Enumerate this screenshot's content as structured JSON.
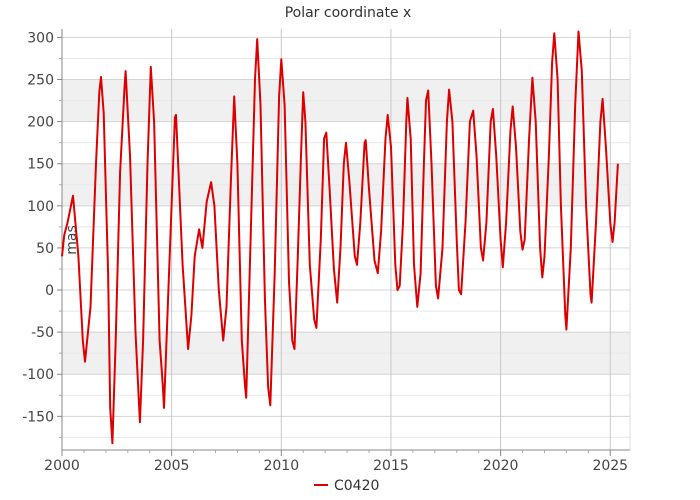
{
  "chart_data": {
    "type": "line",
    "title": "Polar coordinate x",
    "xlabel": "",
    "ylabel": "mas",
    "xlim": [
      2000,
      2025.9
    ],
    "ylim": [
      -190,
      310
    ],
    "x_ticks": [
      2000,
      2005,
      2010,
      2015,
      2020,
      2025
    ],
    "y_ticks": [
      -150,
      -100,
      -50,
      0,
      50,
      100,
      150,
      200,
      250,
      300
    ],
    "grid": true,
    "legend": "bottom-center",
    "series": [
      {
        "name": "C0420",
        "color": "#dd0000",
        "points": [
          [
            2000.0,
            40
          ],
          [
            2000.1,
            65
          ],
          [
            2000.25,
            80
          ],
          [
            2000.5,
            112
          ],
          [
            2000.75,
            40
          ],
          [
            2000.95,
            -60
          ],
          [
            2001.05,
            -85
          ],
          [
            2001.3,
            -20
          ],
          [
            2001.55,
            150
          ],
          [
            2001.7,
            235
          ],
          [
            2001.78,
            253
          ],
          [
            2001.9,
            210
          ],
          [
            2002.1,
            20
          ],
          [
            2002.2,
            -140
          ],
          [
            2002.3,
            -182
          ],
          [
            2002.45,
            -60
          ],
          [
            2002.65,
            140
          ],
          [
            2002.85,
            240
          ],
          [
            2002.9,
            260
          ],
          [
            2003.1,
            160
          ],
          [
            2003.35,
            -50
          ],
          [
            2003.55,
            -157
          ],
          [
            2003.7,
            -60
          ],
          [
            2003.9,
            150
          ],
          [
            2004.05,
            265
          ],
          [
            2004.2,
            200
          ],
          [
            2004.45,
            -60
          ],
          [
            2004.6,
            -115
          ],
          [
            2004.65,
            -140
          ],
          [
            2004.85,
            0
          ],
          [
            2005.15,
            205
          ],
          [
            2005.2,
            208
          ],
          [
            2005.5,
            30
          ],
          [
            2005.75,
            -70
          ],
          [
            2005.9,
            -30
          ],
          [
            2006.05,
            40
          ],
          [
            2006.25,
            72
          ],
          [
            2006.4,
            50
          ],
          [
            2006.6,
            105
          ],
          [
            2006.8,
            128
          ],
          [
            2006.95,
            100
          ],
          [
            2007.15,
            0
          ],
          [
            2007.35,
            -60
          ],
          [
            2007.5,
            -20
          ],
          [
            2007.7,
            130
          ],
          [
            2007.85,
            230
          ],
          [
            2008.0,
            150
          ],
          [
            2008.2,
            -60
          ],
          [
            2008.35,
            -115
          ],
          [
            2008.4,
            -128
          ],
          [
            2008.6,
            60
          ],
          [
            2008.8,
            250
          ],
          [
            2008.9,
            298
          ],
          [
            2009.05,
            220
          ],
          [
            2009.25,
            -10
          ],
          [
            2009.4,
            -115
          ],
          [
            2009.5,
            -137
          ],
          [
            2009.7,
            20
          ],
          [
            2009.9,
            230
          ],
          [
            2010.0,
            274
          ],
          [
            2010.15,
            220
          ],
          [
            2010.35,
            10
          ],
          [
            2010.5,
            -60
          ],
          [
            2010.6,
            -70
          ],
          [
            2010.75,
            40
          ],
          [
            2010.9,
            160
          ],
          [
            2011.0,
            235
          ],
          [
            2011.1,
            200
          ],
          [
            2011.3,
            30
          ],
          [
            2011.5,
            -35
          ],
          [
            2011.6,
            -45
          ],
          [
            2011.8,
            60
          ],
          [
            2011.95,
            180
          ],
          [
            2012.05,
            187
          ],
          [
            2012.2,
            120
          ],
          [
            2012.4,
            25
          ],
          [
            2012.55,
            -15
          ],
          [
            2012.7,
            50
          ],
          [
            2012.85,
            150
          ],
          [
            2012.95,
            175
          ],
          [
            2013.1,
            130
          ],
          [
            2013.35,
            40
          ],
          [
            2013.45,
            30
          ],
          [
            2013.6,
            80
          ],
          [
            2013.8,
            175
          ],
          [
            2013.85,
            178
          ],
          [
            2014.0,
            120
          ],
          [
            2014.25,
            35
          ],
          [
            2014.4,
            20
          ],
          [
            2014.55,
            70
          ],
          [
            2014.75,
            180
          ],
          [
            2014.85,
            208
          ],
          [
            2015.0,
            170
          ],
          [
            2015.2,
            30
          ],
          [
            2015.3,
            0
          ],
          [
            2015.4,
            5
          ],
          [
            2015.55,
            80
          ],
          [
            2015.7,
            200
          ],
          [
            2015.75,
            228
          ],
          [
            2015.9,
            180
          ],
          [
            2016.05,
            30
          ],
          [
            2016.2,
            -20
          ],
          [
            2016.35,
            20
          ],
          [
            2016.5,
            150
          ],
          [
            2016.6,
            225
          ],
          [
            2016.7,
            237
          ],
          [
            2016.85,
            150
          ],
          [
            2017.05,
            5
          ],
          [
            2017.15,
            -10
          ],
          [
            2017.35,
            50
          ],
          [
            2017.55,
            200
          ],
          [
            2017.65,
            238
          ],
          [
            2017.8,
            200
          ],
          [
            2018.0,
            60
          ],
          [
            2018.1,
            0
          ],
          [
            2018.2,
            -5
          ],
          [
            2018.4,
            80
          ],
          [
            2018.6,
            200
          ],
          [
            2018.75,
            213
          ],
          [
            2018.9,
            160
          ],
          [
            2019.1,
            50
          ],
          [
            2019.2,
            35
          ],
          [
            2019.35,
            80
          ],
          [
            2019.55,
            200
          ],
          [
            2019.65,
            215
          ],
          [
            2019.8,
            160
          ],
          [
            2020.0,
            60
          ],
          [
            2020.1,
            27
          ],
          [
            2020.25,
            80
          ],
          [
            2020.45,
            190
          ],
          [
            2020.55,
            218
          ],
          [
            2020.7,
            170
          ],
          [
            2020.9,
            70
          ],
          [
            2021.0,
            48
          ],
          [
            2021.1,
            60
          ],
          [
            2021.3,
            180
          ],
          [
            2021.45,
            252
          ],
          [
            2021.6,
            200
          ],
          [
            2021.8,
            50
          ],
          [
            2021.9,
            15
          ],
          [
            2022.0,
            40
          ],
          [
            2022.2,
            160
          ],
          [
            2022.35,
            270
          ],
          [
            2022.45,
            305
          ],
          [
            2022.6,
            250
          ],
          [
            2022.75,
            100
          ],
          [
            2022.95,
            -30
          ],
          [
            2023.0,
            -47
          ],
          [
            2023.2,
            50
          ],
          [
            2023.4,
            220
          ],
          [
            2023.55,
            307
          ],
          [
            2023.7,
            260
          ],
          [
            2023.9,
            100
          ],
          [
            2024.1,
            -5
          ],
          [
            2024.15,
            -15
          ],
          [
            2024.35,
            80
          ],
          [
            2024.55,
            200
          ],
          [
            2024.65,
            227
          ],
          [
            2024.8,
            170
          ],
          [
            2025.0,
            80
          ],
          [
            2025.1,
            57
          ],
          [
            2025.2,
            80
          ],
          [
            2025.35,
            150
          ]
        ]
      }
    ]
  }
}
